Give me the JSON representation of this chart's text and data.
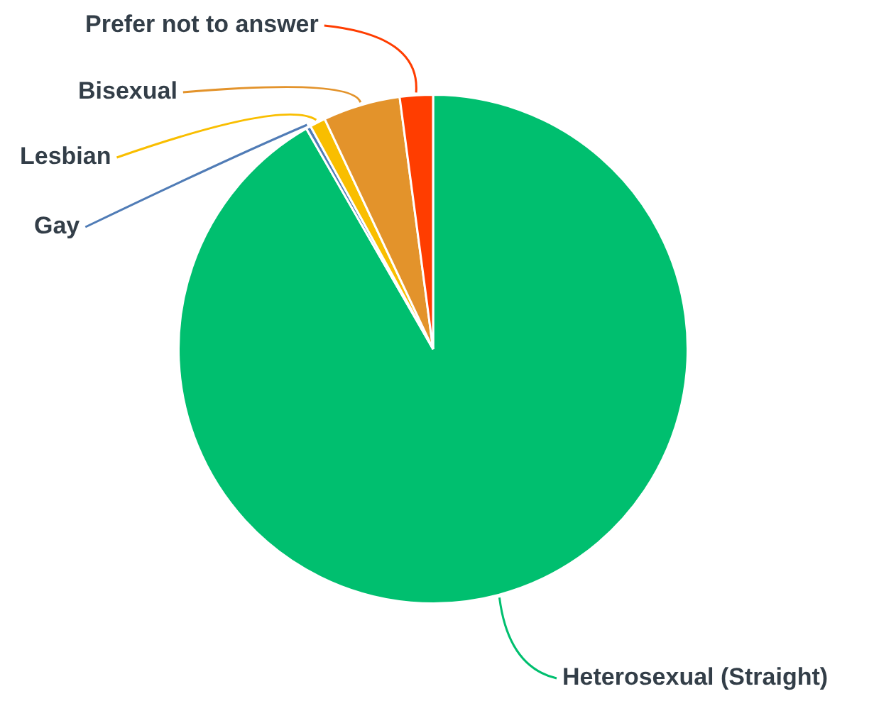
{
  "chart_data": {
    "type": "pie",
    "categories": [
      "Heterosexual (Straight)",
      "Gay",
      "Lesbian",
      "Bisexual",
      "Prefer not to answer"
    ],
    "values": [
      91.7,
      0.3,
      1.0,
      4.9,
      2.1
    ],
    "colors": [
      "#00bf6f",
      "#507cb6",
      "#f9be00",
      "#e3932b",
      "#ff3d00"
    ]
  }
}
